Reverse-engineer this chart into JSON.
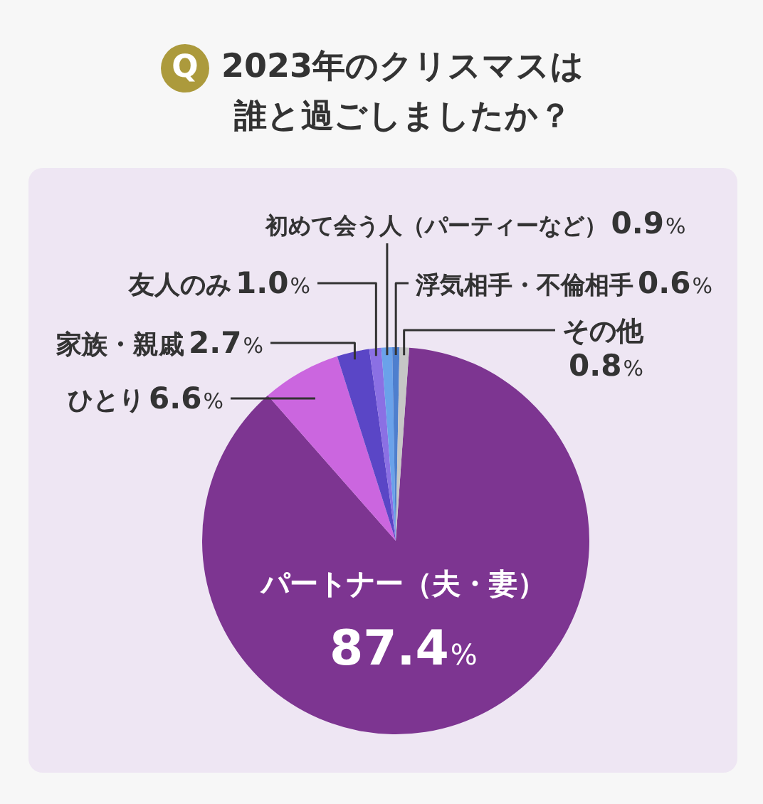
{
  "chart_data": {
    "type": "pie",
    "title": "2023年のクリスマスは誰と過ごしましたか？",
    "annotations": [
      "Q"
    ],
    "categories": [
      "パートナー（夫・妻）",
      "ひとり",
      "家族・親戚",
      "友人のみ",
      "初めて会う人（パーティーなど）",
      "浮気相手・不倫相手",
      "その他"
    ],
    "values": [
      87.4,
      6.6,
      2.7,
      1.0,
      0.9,
      0.6,
      0.8
    ],
    "colors": [
      "#7d3591",
      "#cb66df",
      "#5a46c6",
      "#8b70e4",
      "#6aa2ea",
      "#4e7fce",
      "#c6c6c6"
    ],
    "value_labels": [
      "87.4%",
      "6.6%",
      "2.7%",
      "1.0%",
      "0.9%",
      "0.6%",
      "0.8%"
    ]
  }
}
